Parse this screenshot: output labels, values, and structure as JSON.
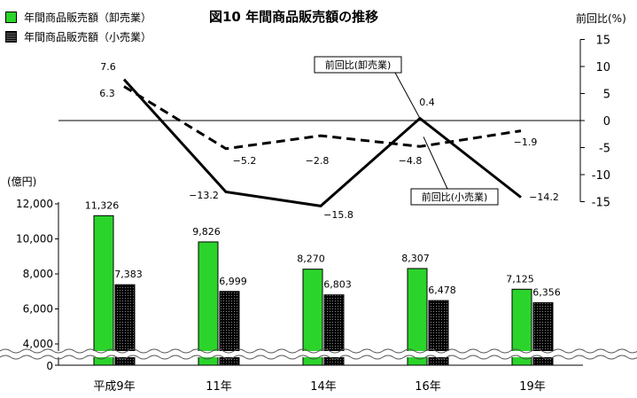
{
  "chart_data": {
    "title": "図10  年間商品販売額の推移",
    "categories": [
      "平成9年",
      "11年",
      "14年",
      "16年",
      "19年"
    ],
    "bar": {
      "type": "bar",
      "unit_label": "(億円)",
      "yticks": [
        "12,000",
        "10,000",
        "8,000",
        "6,000",
        "4,000",
        "0"
      ],
      "series": [
        {
          "name": "年間商品販売額（卸売業）",
          "color": "#2bd42b",
          "values": [
            11326,
            9826,
            8270,
            8307,
            7125
          ],
          "labels": [
            "11,326",
            "9,826",
            "8,270",
            "8,307",
            "7,125"
          ]
        },
        {
          "name": "年間商品販売額（小売業）",
          "color": "#111111",
          "values": [
            7383,
            6999,
            6803,
            6478,
            6356
          ],
          "labels": [
            "7,383",
            "6,999",
            "6,803",
            "6,478",
            "6,356"
          ]
        }
      ]
    },
    "line": {
      "type": "line",
      "unit_label": "前回比(%)",
      "ylim": [
        -15,
        15
      ],
      "yticks": [
        "15",
        "10",
        "5",
        "0",
        "-5",
        "-10",
        "-15"
      ],
      "series": [
        {
          "name": "前回比(卸売業)",
          "style": "solid",
          "values": [
            7.6,
            -13.2,
            -15.8,
            0.4,
            -14.2
          ],
          "labels": [
            "7.6",
            "−13.2",
            "−15.8",
            "0.4",
            "−14.2"
          ]
        },
        {
          "name": "前回比(小売業)",
          "style": "dashed",
          "values": [
            6.3,
            -5.2,
            -2.8,
            -4.8,
            -1.9
          ],
          "labels": [
            "6.3",
            "−5.2",
            "−2.8",
            "−4.8",
            "−1.9"
          ]
        }
      ]
    }
  }
}
